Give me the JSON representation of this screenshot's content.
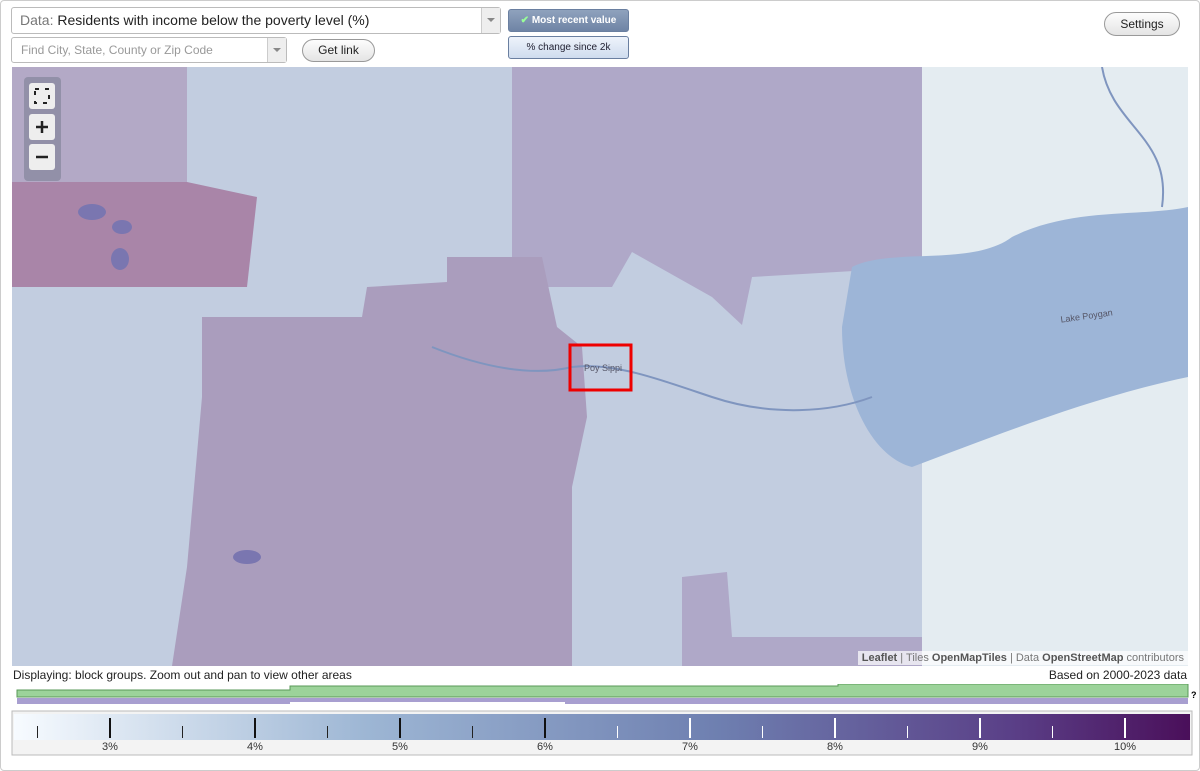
{
  "toolbar": {
    "data_label": "Data:",
    "data_value": "Residents with income below the poverty level (%)",
    "search_placeholder": "Find City, State, County or Zip Code",
    "get_link": "Get link",
    "most_recent": "Most recent value",
    "pct_change": "% change since 2k",
    "settings": "Settings"
  },
  "map": {
    "place_label": "Poy Sippi",
    "lake_label": "Lake Poygan",
    "attribution": [
      "Leaflet",
      "| Tiles",
      "OpenMapTiles",
      "| Data",
      "OpenStreetMap",
      "contributors"
    ]
  },
  "footer": {
    "displaying": "Displaying: block groups. Zoom out and pan to view other areas",
    "based_on": "Based on 2000-2023 data",
    "help": "?"
  },
  "legend": {
    "labels": [
      "3%",
      "4%",
      "5%",
      "6%",
      "7%",
      "8%",
      "9%",
      "10%"
    ]
  }
}
